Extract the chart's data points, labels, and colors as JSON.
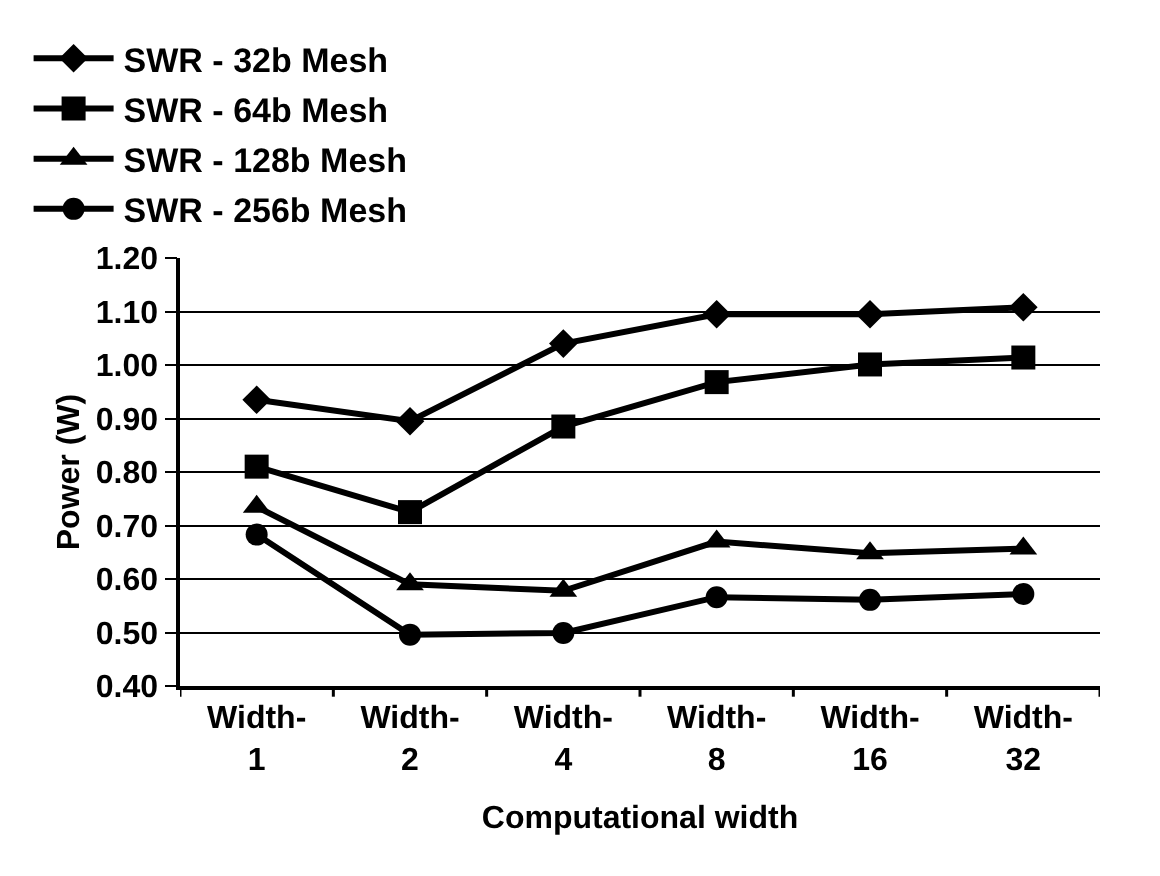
{
  "chart_data": {
    "type": "line",
    "xlabel": "Computational width",
    "ylabel": "Power (W)",
    "categories": [
      "Width-\n1",
      "Width-\n2",
      "Width-\n4",
      "Width-\n8",
      "Width-\n16",
      "Width-\n32"
    ],
    "series": [
      {
        "name": "SWR - 32b Mesh",
        "color": "#000000",
        "marker": "diamond",
        "values": [
          0.935,
          0.895,
          1.04,
          1.095,
          1.095,
          1.108
        ]
      },
      {
        "name": "SWR - 64b Mesh",
        "color": "#000000",
        "marker": "square",
        "values": [
          0.81,
          0.725,
          0.885,
          0.968,
          1.001,
          1.014
        ]
      },
      {
        "name": "SWR - 128b Mesh",
        "color": "#000000",
        "marker": "triangle",
        "values": [
          0.735,
          0.59,
          0.578,
          0.67,
          0.648,
          0.657
        ]
      },
      {
        "name": "SWR - 256b Mesh",
        "color": "#000000",
        "marker": "circle",
        "values": [
          0.683,
          0.496,
          0.499,
          0.566,
          0.561,
          0.572
        ]
      }
    ],
    "ylim": [
      0.4,
      1.2
    ],
    "yticks": [
      {
        "value": 0.4,
        "label": "0.40"
      },
      {
        "value": 0.5,
        "label": "0.50"
      },
      {
        "value": 0.6,
        "label": "0.60"
      },
      {
        "value": 0.7,
        "label": "0.70"
      },
      {
        "value": 0.8,
        "label": "0.80"
      },
      {
        "value": 0.9,
        "label": "0.90"
      },
      {
        "value": 1.0,
        "label": "1.00"
      },
      {
        "value": 1.1,
        "label": "1.10"
      },
      {
        "value": 1.2,
        "label": "1.20"
      }
    ],
    "grid": "y",
    "legend": "top",
    "line_style": "solid"
  }
}
